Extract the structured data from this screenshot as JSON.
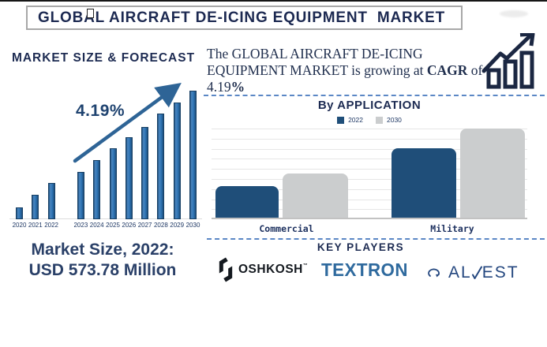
{
  "header": {
    "title": "GLOBAL AIRCRAFT DE-ICING EQUIPMENT  MARKET"
  },
  "left_panel": {
    "heading": "MARKET SIZE & FORECAST",
    "cagr_annotation": "4.19%",
    "market_size_title": "Market Size, 2022:",
    "market_size_value": "USD 573.78 Million"
  },
  "right_panel": {
    "growth_statement": {
      "part1": "The GLOBAL AIRCRAFT DE-ICING EQUIPMENT MARKET is growing at ",
      "part2_bold": "CAGR",
      "part3": " of 4.19",
      "part4_bold": "%"
    },
    "growth_icon": "bar-chart-with-rising-arrow",
    "application_section": {
      "heading": "By APPLICATION"
    },
    "key_players": {
      "heading": "KEY PLAYERS",
      "players": [
        "OSHKOSH",
        "TEXTRON",
        "ALVEST"
      ],
      "oshkosh_trademark": "™",
      "alvest_parts": {
        "pre": "AL",
        "post": "EST"
      }
    }
  },
  "chart_data": [
    {
      "type": "bar",
      "title": "MARKET SIZE & FORECAST",
      "categories": [
        "2020",
        "2021",
        "2022",
        "2023",
        "2024",
        "2025",
        "2026",
        "2027",
        "2028",
        "2029",
        "2030"
      ],
      "values": [
        9,
        19,
        28,
        37,
        46,
        55,
        64,
        72,
        82,
        91,
        100
      ],
      "unit": "relative bar height, % of 2030 bar (axis values not labeled)",
      "annotations": {
        "cagr": "4.19%",
        "market_size_2022": "USD 573.78 Million"
      },
      "bar_color": "#2e74b4",
      "trend_arrow": true,
      "legend_position": "none",
      "grid": false
    },
    {
      "type": "bar",
      "title": "By APPLICATION",
      "categories": [
        "Commercial",
        "Military"
      ],
      "series": [
        {
          "name": "2022",
          "color": "#1f4e79",
          "values": [
            35,
            78
          ]
        },
        {
          "name": "2030",
          "color": "#cbcdce",
          "values": [
            50,
            100
          ]
        }
      ],
      "unit": "relative bar height, % of tallest bar (axis values not labeled)",
      "grid": true,
      "legend_position": "top"
    }
  ]
}
